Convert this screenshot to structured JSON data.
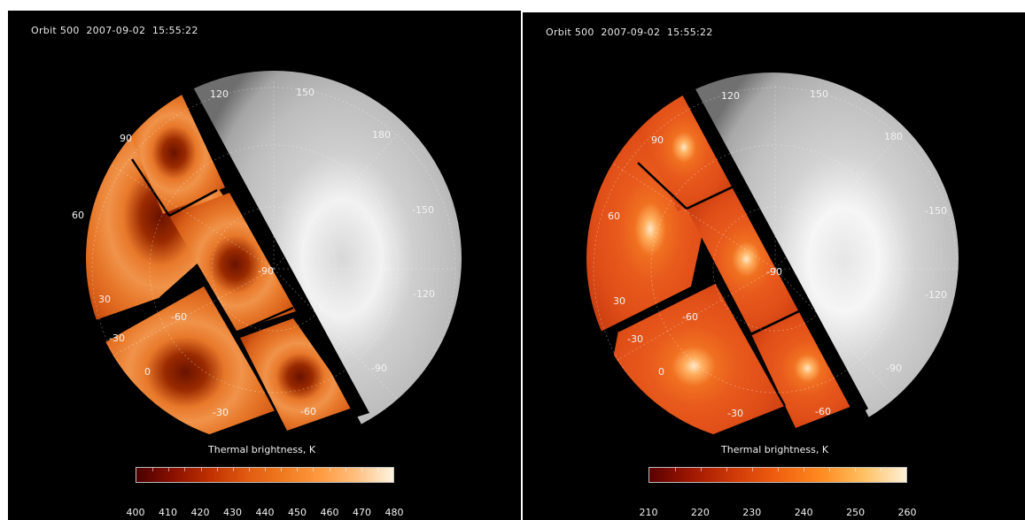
{
  "left_panel": {
    "header": "Orbit 500  2007-09-02  15:55:22",
    "colorbar_title": "Thermal brightness, K",
    "colorbar_ticks": [
      "400",
      "410",
      "420",
      "430",
      "440",
      "450",
      "460",
      "470",
      "480"
    ],
    "longitude_labels": [
      "120",
      "150",
      "180",
      "-150",
      "-120",
      "-90",
      "90",
      "60",
      "30",
      "0",
      "-30",
      "-60"
    ],
    "latitude_labels": [
      "-30",
      "-60",
      "-90"
    ],
    "colors": {
      "gradient": [
        "#4a0000",
        "#8a1000",
        "#c03000",
        "#e05a10",
        "#f07a20",
        "#ff9a40",
        "#ffc080",
        "#fff4e0"
      ]
    }
  },
  "right_panel": {
    "header": "Orbit 500  2007-09-02  15:55:22",
    "colorbar_title": "Thermal brightness, K",
    "colorbar_ticks": [
      "210",
      "220",
      "230",
      "240",
      "250",
      "260"
    ],
    "longitude_labels": [
      "120",
      "150",
      "180",
      "-150",
      "-120",
      "-90",
      "90",
      "60",
      "30",
      "0",
      "-30",
      "-60"
    ],
    "latitude_labels": [
      "-30",
      "-60",
      "-90"
    ],
    "colors": {
      "gradient": [
        "#5a0000",
        "#a01800",
        "#d03a08",
        "#f06010",
        "#ff8a20",
        "#ffc060",
        "#fff0d8"
      ]
    }
  }
}
